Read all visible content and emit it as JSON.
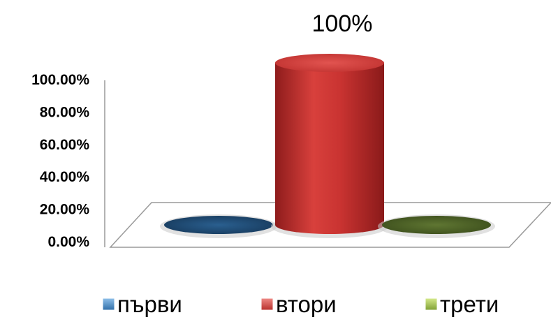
{
  "chart_data": {
    "type": "bar",
    "style": "3d-cylinder",
    "categories": [
      "първи",
      "втори",
      "трети"
    ],
    "values": [
      0,
      1,
      0
    ],
    "data_labels": [
      "",
      "100%",
      ""
    ],
    "yticks": [
      "0.00%",
      "20.00%",
      "40.00%",
      "60.00%",
      "80.00%",
      "100.00%"
    ],
    "ylim": [
      0,
      1
    ],
    "grid": false,
    "legend": "bottom",
    "colors": [
      "#1f4e79",
      "#c0302e",
      "#4f6228"
    ]
  }
}
